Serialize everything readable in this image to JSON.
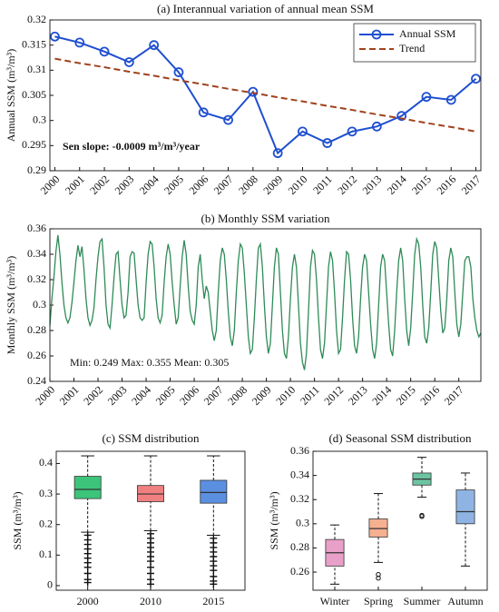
{
  "chart_data": [
    {
      "type": "line",
      "title": "(a) Interannual variation of annual mean SSM",
      "ylabel": "Annual SSM (m³/m³)",
      "categories": [
        "2000",
        "2001",
        "2002",
        "2003",
        "2004",
        "2005",
        "2006",
        "2007",
        "2008",
        "2009",
        "2010",
        "2011",
        "2012",
        "2013",
        "2014",
        "2015",
        "2016",
        "2017"
      ],
      "series": [
        {
          "name": "Annual SSM",
          "color": "#1f4fd0",
          "marker": "o",
          "linestyle": "-",
          "values": [
            0.3167,
            0.3155,
            0.3137,
            0.3116,
            0.315,
            0.3096,
            0.3016,
            0.3001,
            0.3057,
            0.2935,
            0.2978,
            0.2955,
            0.2978,
            0.2988,
            0.3009,
            0.3047,
            0.3041,
            0.3083
          ]
        },
        {
          "name": "Trend",
          "color": "#a0421d",
          "linestyle": "--",
          "values": [
            0.3123,
            0.3114,
            0.3106,
            0.3097,
            0.3089,
            0.308,
            0.3072,
            0.3063,
            0.3055,
            0.3046,
            0.3038,
            0.3029,
            0.3021,
            0.3012,
            0.3004,
            0.2995,
            0.2987,
            0.2978
          ]
        }
      ],
      "ylim": [
        0.29,
        0.32
      ],
      "yticks": [
        0.29,
        0.295,
        0.3,
        0.305,
        0.31,
        0.315,
        0.32
      ],
      "annotation": "Sen slope: -0.0009 m³/m³/year",
      "legend": "upper right"
    },
    {
      "type": "line",
      "title": "(b) Monthly SSM variation",
      "ylabel": "Monthly SSM (m³/m³)",
      "series": [
        {
          "color": "#2e8b57",
          "linestyle": "-",
          "values": [
            0.284,
            0.305,
            0.322,
            0.342,
            0.355,
            0.34,
            0.318,
            0.3,
            0.29,
            0.286,
            0.29,
            0.302,
            0.318,
            0.335,
            0.347,
            0.338,
            0.346,
            0.328,
            0.305,
            0.29,
            0.284,
            0.288,
            0.298,
            0.32,
            0.338,
            0.35,
            0.352,
            0.33,
            0.3,
            0.285,
            0.282,
            0.3,
            0.322,
            0.34,
            0.342,
            0.32,
            0.3,
            0.29,
            0.292,
            0.31,
            0.338,
            0.342,
            0.341,
            0.32,
            0.3,
            0.29,
            0.288,
            0.29,
            0.318,
            0.34,
            0.35,
            0.348,
            0.33,
            0.305,
            0.29,
            0.286,
            0.292,
            0.318,
            0.338,
            0.348,
            0.34,
            0.318,
            0.3,
            0.285,
            0.29,
            0.315,
            0.338,
            0.351,
            0.34,
            0.315,
            0.295,
            0.288,
            0.285,
            0.3,
            0.33,
            0.34,
            0.32,
            0.305,
            0.315,
            0.31,
            0.295,
            0.28,
            0.272,
            0.28,
            0.31,
            0.335,
            0.345,
            0.34,
            0.32,
            0.295,
            0.275,
            0.268,
            0.28,
            0.31,
            0.335,
            0.348,
            0.345,
            0.325,
            0.3,
            0.275,
            0.262,
            0.265,
            0.29,
            0.32,
            0.345,
            0.348,
            0.33,
            0.3,
            0.275,
            0.262,
            0.27,
            0.3,
            0.33,
            0.345,
            0.34,
            0.31,
            0.28,
            0.262,
            0.258,
            0.275,
            0.305,
            0.33,
            0.34,
            0.33,
            0.3,
            0.27,
            0.255,
            0.249,
            0.262,
            0.295,
            0.33,
            0.343,
            0.34,
            0.32,
            0.29,
            0.265,
            0.258,
            0.27,
            0.3,
            0.33,
            0.342,
            0.335,
            0.31,
            0.28,
            0.262,
            0.265,
            0.29,
            0.32,
            0.342,
            0.34,
            0.32,
            0.29,
            0.268,
            0.262,
            0.275,
            0.305,
            0.33,
            0.34,
            0.335,
            0.31,
            0.285,
            0.265,
            0.258,
            0.27,
            0.3,
            0.33,
            0.34,
            0.335,
            0.31,
            0.285,
            0.265,
            0.26,
            0.28,
            0.31,
            0.335,
            0.345,
            0.335,
            0.305,
            0.28,
            0.268,
            0.282,
            0.31,
            0.34,
            0.352,
            0.348,
            0.33,
            0.3,
            0.275,
            0.27,
            0.282,
            0.31,
            0.34,
            0.35,
            0.345,
            0.32,
            0.295,
            0.278,
            0.282,
            0.305,
            0.335,
            0.345,
            0.338,
            0.31,
            0.285,
            0.275,
            0.285,
            0.31,
            0.335,
            0.338,
            0.338,
            0.33,
            0.305,
            0.29,
            0.28,
            0.275,
            0.278
          ]
        }
      ],
      "xlim": [
        0,
        215
      ],
      "xticks": [
        {
          "value": 0,
          "label": "2000"
        },
        {
          "value": 12,
          "label": "2001"
        },
        {
          "value": 24,
          "label": "2002"
        },
        {
          "value": 36,
          "label": "2003"
        },
        {
          "value": 48,
          "label": "2004"
        },
        {
          "value": 60,
          "label": "2005"
        },
        {
          "value": 72,
          "label": "2006"
        },
        {
          "value": 84,
          "label": "2007"
        },
        {
          "value": 96,
          "label": "2008"
        },
        {
          "value": 108,
          "label": "2009"
        },
        {
          "value": 120,
          "label": "2010"
        },
        {
          "value": 132,
          "label": "2011"
        },
        {
          "value": 144,
          "label": "2012"
        },
        {
          "value": 156,
          "label": "2013"
        },
        {
          "value": 168,
          "label": "2014"
        },
        {
          "value": 180,
          "label": "2015"
        },
        {
          "value": 192,
          "label": "2016"
        },
        {
          "value": 204,
          "label": "2017"
        }
      ],
      "ylim": [
        0.24,
        0.36
      ],
      "yticks": [
        0.24,
        0.26,
        0.28,
        0.3,
        0.32,
        0.34,
        0.36
      ],
      "annotation": "Min: 0.249  Max: 0.355  Mean: 0.305"
    },
    {
      "type": "box",
      "title": "(c) SSM distribution",
      "ylabel": "SSM (m³/m³)",
      "categories": [
        "2000",
        "2010",
        "2015"
      ],
      "boxes": [
        {
          "color": "#3cc47a",
          "whisker_low": 0.175,
          "q1": 0.285,
          "median": 0.315,
          "q3": 0.358,
          "whisker_high": 0.425,
          "outliers": [
            0.165,
            0.15,
            0.135,
            0.12,
            0.105,
            0.09,
            0.075,
            0.06,
            0.04,
            0.02,
            0.01
          ]
        },
        {
          "color": "#f08080",
          "whisker_low": 0.18,
          "q1": 0.275,
          "median": 0.3,
          "q3": 0.328,
          "whisker_high": 0.425,
          "outliers": [
            0.17,
            0.155,
            0.14,
            0.125,
            0.11,
            0.095,
            0.08,
            0.06,
            0.04,
            0.02,
            0.005
          ]
        },
        {
          "color": "#5b8fe0",
          "whisker_low": 0.165,
          "q1": 0.27,
          "median": 0.305,
          "q3": 0.345,
          "whisker_high": 0.425,
          "outliers": [
            0.155,
            0.14,
            0.125,
            0.11,
            0.095,
            0.08,
            0.065,
            0.05,
            0.03,
            0.015,
            0.005
          ]
        }
      ],
      "ylim": [
        -0.015,
        0.44
      ],
      "yticks": [
        0,
        0.1,
        0.2,
        0.3,
        0.4
      ]
    },
    {
      "type": "box",
      "title": "(d) Seasonal SSM distribution",
      "ylabel": "SSM (m³/m³)",
      "categories": [
        "Winter",
        "Spring",
        "Summer",
        "Autumn"
      ],
      "boxes": [
        {
          "color": "#e8a0c8",
          "whisker_low": 0.25,
          "q1": 0.265,
          "median": 0.276,
          "q3": 0.287,
          "whisker_high": 0.299,
          "outliers": []
        },
        {
          "color": "#f5b090",
          "whisker_low": 0.268,
          "q1": 0.289,
          "median": 0.296,
          "q3": 0.304,
          "whisker_high": 0.325,
          "outliers": [
            0.255,
            0.258
          ]
        },
        {
          "color": "#6cc4a0",
          "whisker_low": 0.322,
          "q1": 0.332,
          "median": 0.337,
          "q3": 0.342,
          "whisker_high": 0.355,
          "outliers": [
            0.306,
            0.307
          ]
        },
        {
          "color": "#8fb4e4",
          "whisker_low": 0.265,
          "q1": 0.3,
          "median": 0.31,
          "q3": 0.328,
          "whisker_high": 0.342,
          "outliers": []
        }
      ],
      "ylim": [
        0.245,
        0.36
      ],
      "yticks": [
        0.26,
        0.28,
        0.3,
        0.32,
        0.34,
        0.36
      ]
    }
  ]
}
